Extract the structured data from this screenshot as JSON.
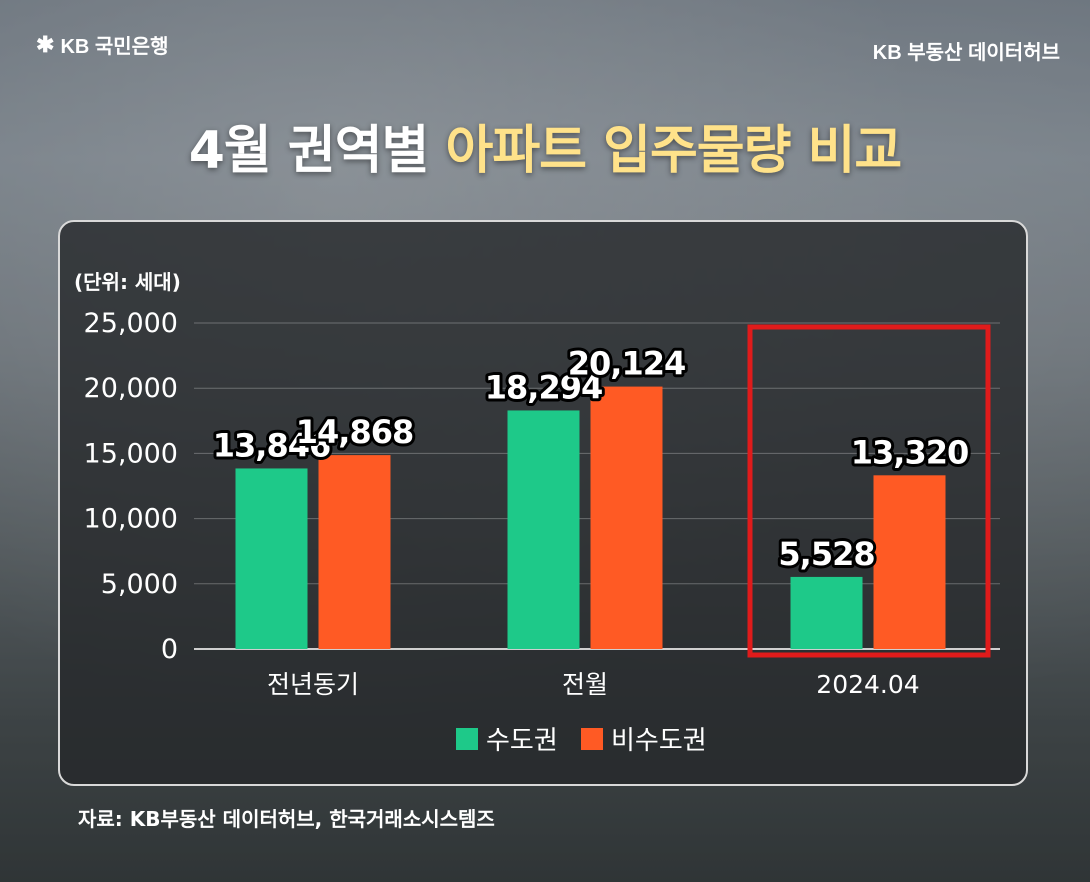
{
  "header": {
    "brand_mark": "✱",
    "brand_name": "KB 국민은행",
    "hub": "KB 부동산  데이터허브",
    "title_plain": "4월 권역별 ",
    "title_highlight": "아파트 입주물량 비교"
  },
  "chart_data": {
    "type": "bar",
    "unit_label": "(단위: 세대)",
    "categories": [
      "전년동기",
      "전월",
      "2024.04"
    ],
    "series": [
      {
        "name": "수도권",
        "color": "#1ec989",
        "values": [
          13846,
          18294,
          5528
        ]
      },
      {
        "name": "비수도권",
        "color": "#ff5a24",
        "values": [
          14868,
          20124,
          13320
        ]
      }
    ],
    "value_labels": [
      [
        "13,846",
        "18,294",
        "5,528"
      ],
      [
        "14,868",
        "20,124",
        "13,320"
      ]
    ],
    "y_ticks": [
      "0",
      "5,000",
      "10,000",
      "15,000",
      "20,000",
      "25,000"
    ],
    "ylim": [
      0,
      25000
    ],
    "grid": true,
    "legend": "bottom-center",
    "highlight_category": "2024.04",
    "highlight_color": "#e01b1b"
  },
  "footer": {
    "source": "자료: KB부동산 데이터허브, 한국거래소시스템즈"
  }
}
